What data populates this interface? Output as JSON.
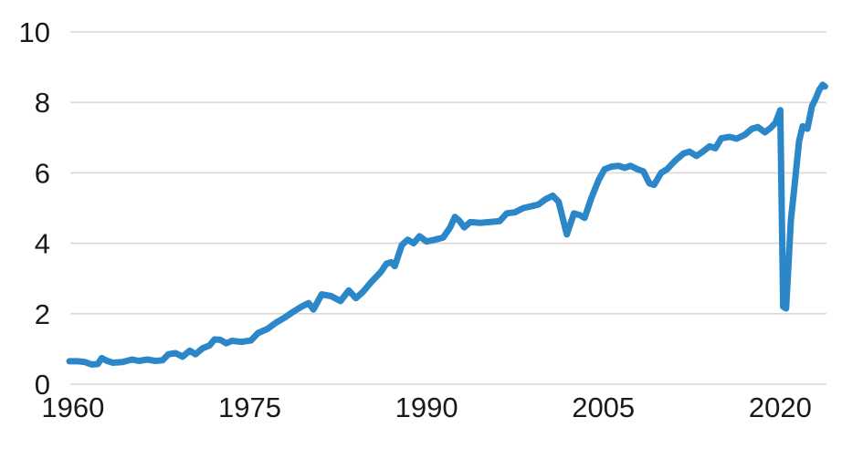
{
  "figure": {
    "background_color": "#ffffff",
    "text_color": "#1a1a1a",
    "gridline_color": "#d9d9d9"
  },
  "chart_data": {
    "type": "line",
    "title": "",
    "xlabel": "",
    "ylabel": "",
    "legend": "none",
    "grid": "horizontal",
    "xlim": [
      1959.7,
      2024.0
    ],
    "ylim": [
      0,
      10
    ],
    "x_ticks": [
      "1960",
      "1975",
      "1990",
      "2005",
      "2020"
    ],
    "x_tick_years": [
      1960,
      1975,
      1990,
      2005,
      2020
    ],
    "y_ticks": [
      "0",
      "2",
      "4",
      "6",
      "8",
      "10"
    ],
    "y_tick_values": [
      0,
      2,
      4,
      6,
      8,
      10
    ],
    "series": [
      {
        "name": "blue-line",
        "color": "#2B87C8",
        "line_width": 7,
        "points": [
          [
            1959.7,
            0.65
          ],
          [
            1960.4,
            0.65
          ],
          [
            1961.0,
            0.63
          ],
          [
            1961.6,
            0.56
          ],
          [
            1962.1,
            0.57
          ],
          [
            1962.45,
            0.74
          ],
          [
            1962.9,
            0.66
          ],
          [
            1963.4,
            0.61
          ],
          [
            1964.2,
            0.63
          ],
          [
            1965.0,
            0.7
          ],
          [
            1965.6,
            0.66
          ],
          [
            1966.3,
            0.7
          ],
          [
            1967.0,
            0.66
          ],
          [
            1967.6,
            0.68
          ],
          [
            1968.1,
            0.85
          ],
          [
            1968.7,
            0.88
          ],
          [
            1969.3,
            0.78
          ],
          [
            1969.9,
            0.95
          ],
          [
            1970.4,
            0.85
          ],
          [
            1971.0,
            1.02
          ],
          [
            1971.6,
            1.1
          ],
          [
            1972.0,
            1.27
          ],
          [
            1972.5,
            1.26
          ],
          [
            1973.0,
            1.16
          ],
          [
            1973.5,
            1.23
          ],
          [
            1974.3,
            1.2
          ],
          [
            1975.1,
            1.24
          ],
          [
            1975.7,
            1.45
          ],
          [
            1976.5,
            1.57
          ],
          [
            1977.2,
            1.74
          ],
          [
            1978.0,
            1.9
          ],
          [
            1978.8,
            2.08
          ],
          [
            1979.5,
            2.22
          ],
          [
            1980.0,
            2.3
          ],
          [
            1980.4,
            2.12
          ],
          [
            1981.1,
            2.55
          ],
          [
            1981.9,
            2.5
          ],
          [
            1982.7,
            2.36
          ],
          [
            1983.4,
            2.66
          ],
          [
            1984.0,
            2.44
          ],
          [
            1984.6,
            2.62
          ],
          [
            1985.3,
            2.9
          ],
          [
            1986.1,
            3.18
          ],
          [
            1986.6,
            3.42
          ],
          [
            1987.0,
            3.46
          ],
          [
            1987.3,
            3.35
          ],
          [
            1987.9,
            3.95
          ],
          [
            1988.4,
            4.1
          ],
          [
            1988.9,
            4.0
          ],
          [
            1989.4,
            4.2
          ],
          [
            1990.0,
            4.05
          ],
          [
            1990.7,
            4.1
          ],
          [
            1991.4,
            4.16
          ],
          [
            1992.0,
            4.45
          ],
          [
            1992.4,
            4.75
          ],
          [
            1992.8,
            4.63
          ],
          [
            1993.2,
            4.45
          ],
          [
            1993.7,
            4.6
          ],
          [
            1994.6,
            4.58
          ],
          [
            1995.5,
            4.61
          ],
          [
            1996.2,
            4.63
          ],
          [
            1996.8,
            4.85
          ],
          [
            1997.5,
            4.88
          ],
          [
            1998.2,
            5.0
          ],
          [
            1999.0,
            5.06
          ],
          [
            1999.5,
            5.1
          ],
          [
            2000.1,
            5.25
          ],
          [
            2000.7,
            5.35
          ],
          [
            2001.2,
            5.18
          ],
          [
            2001.9,
            4.25
          ],
          [
            2002.5,
            4.85
          ],
          [
            2003.0,
            4.8
          ],
          [
            2003.4,
            4.72
          ],
          [
            2004.0,
            5.3
          ],
          [
            2004.6,
            5.8
          ],
          [
            2005.1,
            6.1
          ],
          [
            2005.7,
            6.18
          ],
          [
            2006.3,
            6.2
          ],
          [
            2006.8,
            6.14
          ],
          [
            2007.3,
            6.2
          ],
          [
            2007.9,
            6.1
          ],
          [
            2008.4,
            6.04
          ],
          [
            2008.9,
            5.7
          ],
          [
            2009.3,
            5.66
          ],
          [
            2009.9,
            6.0
          ],
          [
            2010.4,
            6.1
          ],
          [
            2011.1,
            6.35
          ],
          [
            2011.8,
            6.55
          ],
          [
            2012.3,
            6.6
          ],
          [
            2012.9,
            6.48
          ],
          [
            2013.5,
            6.62
          ],
          [
            2014.0,
            6.75
          ],
          [
            2014.5,
            6.7
          ],
          [
            2015.0,
            6.98
          ],
          [
            2015.7,
            7.02
          ],
          [
            2016.3,
            6.97
          ],
          [
            2017.0,
            7.08
          ],
          [
            2017.6,
            7.25
          ],
          [
            2018.1,
            7.3
          ],
          [
            2018.7,
            7.15
          ],
          [
            2019.2,
            7.28
          ],
          [
            2019.6,
            7.42
          ],
          [
            2020.0,
            7.78
          ],
          [
            2020.25,
            2.2
          ],
          [
            2020.5,
            2.15
          ],
          [
            2020.9,
            4.65
          ],
          [
            2021.2,
            5.6
          ],
          [
            2021.6,
            6.9
          ],
          [
            2021.9,
            7.32
          ],
          [
            2022.3,
            7.25
          ],
          [
            2022.7,
            7.9
          ],
          [
            2023.0,
            8.1
          ],
          [
            2023.3,
            8.35
          ],
          [
            2023.6,
            8.5
          ],
          [
            2023.8,
            8.45
          ]
        ]
      }
    ]
  }
}
